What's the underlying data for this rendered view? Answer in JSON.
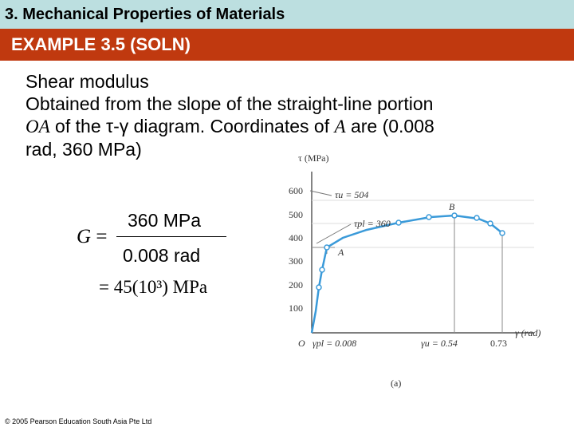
{
  "header": {
    "title": "3. Mechanical Properties of Materials",
    "example": "EXAMPLE 3.5 (SOLN)"
  },
  "content": {
    "line1": "Shear modulus",
    "line2": "Obtained from the slope of the straight-line portion",
    "line3_oa": "OA",
    "line3_rest": " of the τ-γ diagram. Coordinates of ",
    "line3_a": "A",
    "line3_end": " are (0.008",
    "line4": "rad, 360 MPa)"
  },
  "equation": {
    "lhs": "G",
    "equals": "=",
    "numerator": "360 MPa",
    "denominator": "0.008 rad",
    "result": "= 45(10³) MPa"
  },
  "figure": {
    "y_axis_label": "τ (MPa)",
    "x_axis_label": "γ (rad)",
    "origin_label": "O",
    "y_ticks": [
      "100",
      "200",
      "300",
      "400",
      "500",
      "600"
    ],
    "x_marks": [
      "γpl = 0.008",
      "γu = 0.54",
      "0.73"
    ],
    "ann_tau_u": "τu = 504",
    "ann_tau_pl": "τpl = 360",
    "point_a": "A",
    "point_b": "B",
    "caption": "(a)",
    "curve_color": "#3a9ad9"
  },
  "chart_data": {
    "type": "line",
    "xlabel": "γ (rad)",
    "ylabel": "τ (MPa)",
    "series": [
      {
        "x": [
          0.0,
          0.002,
          0.004,
          0.006,
          0.008,
          0.05,
          0.1,
          0.2,
          0.3,
          0.4,
          0.5,
          0.54,
          0.6,
          0.65,
          0.7,
          0.73
        ],
        "y": [
          0,
          90,
          180,
          270,
          360,
          400,
          430,
          462,
          482,
          496,
          503,
          504,
          495,
          480,
          455,
          430
        ]
      }
    ],
    "ylim": [
      0,
      650
    ],
    "annotations": [
      "τu = 504",
      "τpl = 360"
    ]
  },
  "footer": {
    "copyright": "© 2005 Pearson Education South Asia Pte Ltd"
  }
}
